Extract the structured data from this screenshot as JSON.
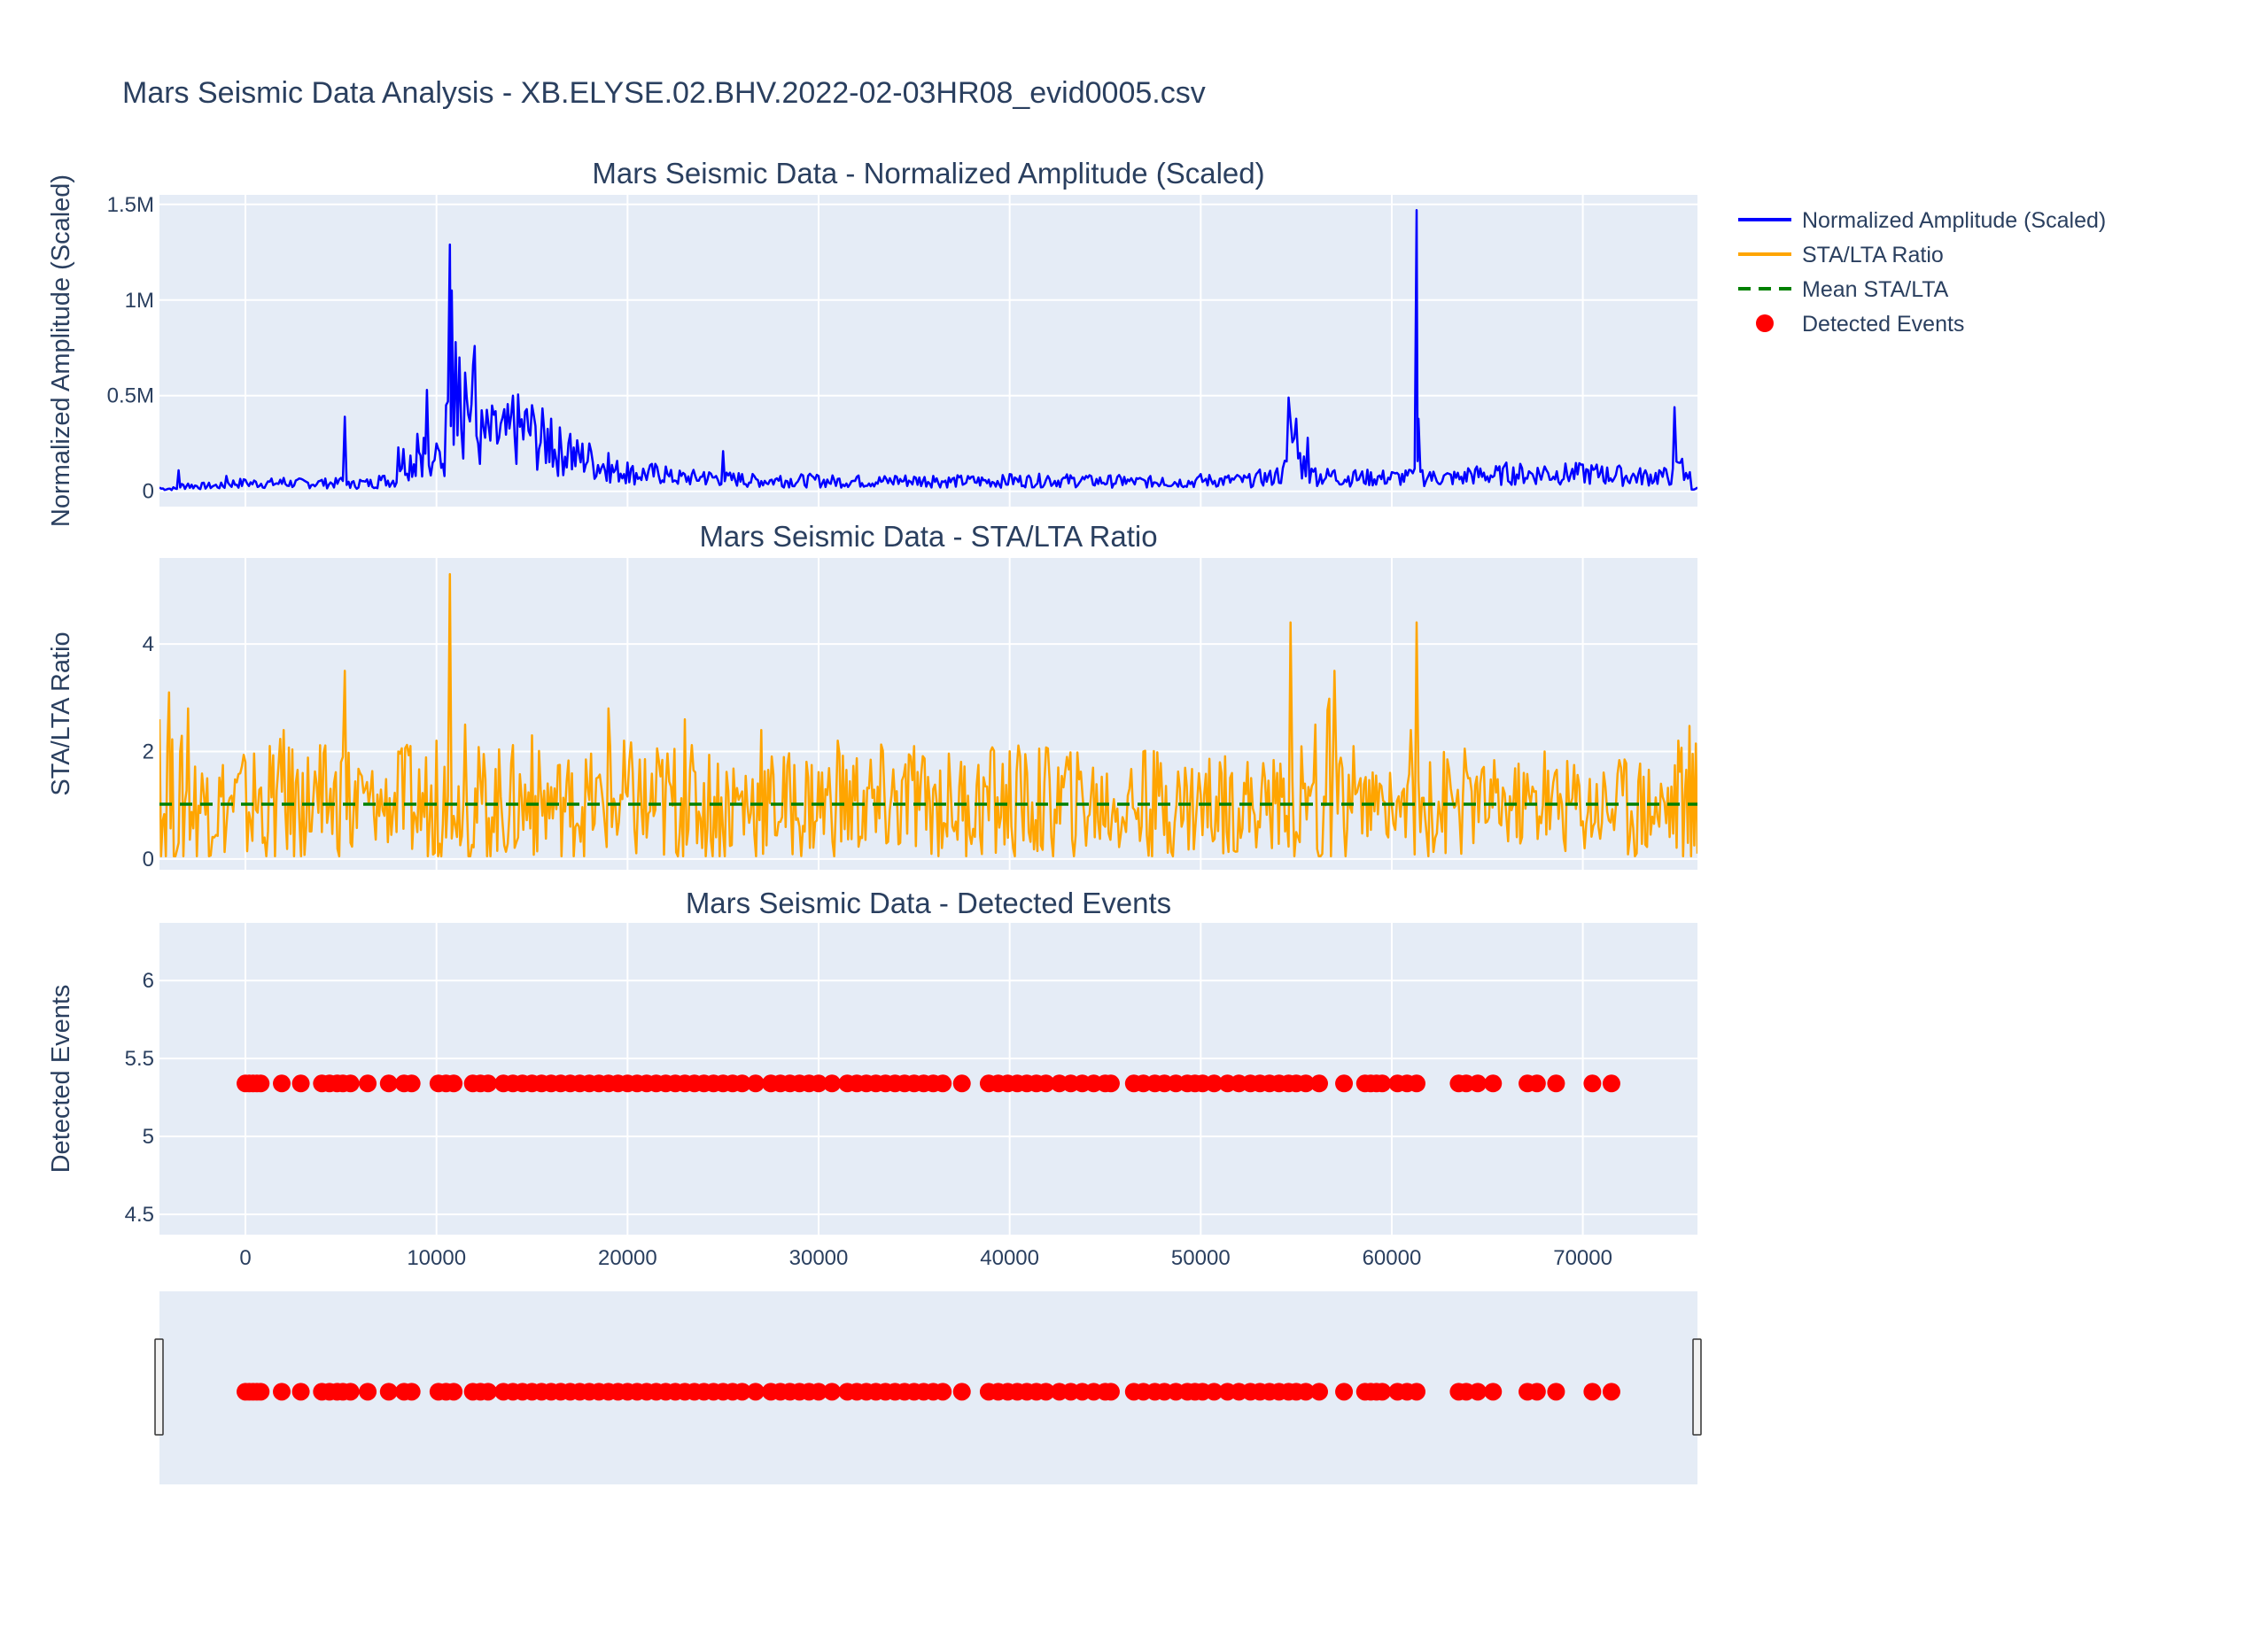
{
  "colors": {
    "amplitude": "#0000ff",
    "sta_lta": "#ffa500",
    "mean_line": "#008000",
    "events": "#ff0000",
    "plot_bg": "#e5ecf6",
    "text": "#2a3f5f"
  },
  "chart_data": {
    "type": "line",
    "title": "Mars Seismic Data Analysis - XB.ELYSE.02.BHV.2022-02-03HR08_evid0005.csv",
    "shared_x": {
      "range": [
        -4500,
        76000
      ],
      "ticks": [
        0,
        10000,
        20000,
        30000,
        40000,
        50000,
        60000,
        70000
      ],
      "tick_labels": [
        "0",
        "10000",
        "20000",
        "30000",
        "40000",
        "50000",
        "60000",
        "70000"
      ]
    },
    "legend": {
      "placement": "top-right",
      "entries": [
        "Normalized Amplitude (Scaled)",
        "STA/LTA Ratio",
        "Mean STA/LTA",
        "Detected Events"
      ]
    },
    "subplots": [
      {
        "title": "Mars Seismic Data - Normalized Amplitude (Scaled)",
        "ylabel": "Normalized Amplitude (Scaled)",
        "ylim": [
          -80000,
          1550000
        ],
        "yticks": [
          0,
          500000,
          1000000,
          1500000
        ],
        "ytick_labels": [
          "0",
          "0.5M",
          "1M",
          "1.5M"
        ],
        "series": [
          {
            "name": "Normalized Amplitude (Scaled)",
            "x": [
              -4500,
              -3500,
              -3000,
              -1000,
              0,
              2000,
              4000,
              5000,
              5200,
              5400,
              6000,
              7000,
              8000,
              9000,
              9500,
              9800,
              10000,
              10500,
              10700,
              10800,
              11000,
              11200,
              11500,
              12000,
              13000,
              14000,
              15000,
              16000,
              17000,
              18000,
              19000,
              20000,
              22000,
              24000,
              25000,
              26000,
              28000,
              30000,
              32000,
              34000,
              36000,
              38000,
              40000,
              42000,
              44000,
              46000,
              48000,
              50000,
              52000,
              53000,
              54000,
              54400,
              54600,
              55000,
              55200,
              55600,
              56000,
              57000,
              58000,
              60000,
              61000,
              61300,
              61400,
              61600,
              62000,
              64000,
              66000,
              68000,
              70000,
              71000,
              72000,
              74000,
              74800,
              75000,
              75200,
              75600,
              76000
            ],
            "y": [
              20000,
              110000,
              40000,
              80000,
              60000,
              70000,
              60000,
              70000,
              390000,
              50000,
              60000,
              80000,
              230000,
              300000,
              530000,
              150000,
              250000,
              450000,
              1290000,
              1050000,
              780000,
              700000,
              620000,
              760000,
              400000,
              500000,
              450000,
              380000,
              300000,
              250000,
              200000,
              150000,
              130000,
              100000,
              210000,
              90000,
              80000,
              80000,
              75000,
              80000,
              80000,
              75000,
              90000,
              80000,
              80000,
              75000,
              70000,
              90000,
              80000,
              100000,
              120000,
              160000,
              490000,
              380000,
              200000,
              280000,
              120000,
              110000,
              100000,
              100000,
              110000,
              1470000,
              380000,
              110000,
              100000,
              120000,
              150000,
              130000,
              140000,
              130000,
              120000,
              110000,
              440000,
              150000,
              170000,
              100000,
              20000
            ]
          }
        ]
      },
      {
        "title": "Mars Seismic Data - STA/LTA Ratio",
        "ylabel": "STA/LTA Ratio",
        "ylim": [
          -0.2,
          5.6
        ],
        "yticks": [
          0,
          2,
          4
        ],
        "ytick_labels": [
          "0",
          "2",
          "4"
        ],
        "series": [
          {
            "name": "STA/LTA Ratio",
            "x": [
              -4500,
              -4000,
              -3500,
              -3000,
              -2000,
              -1000,
              0,
              1000,
              2000,
              3000,
              4000,
              5000,
              5200,
              5500,
              6000,
              7000,
              8000,
              9000,
              10000,
              10500,
              10700,
              10900,
              11500,
              13000,
              15000,
              17000,
              19000,
              21000,
              23000,
              25000,
              27000,
              29000,
              31000,
              33000,
              35000,
              37000,
              39000,
              41000,
              43000,
              45000,
              47000,
              49000,
              51000,
              53000,
              54000,
              54500,
              54700,
              55000,
              56000,
              57000,
              57500,
              58000,
              60000,
              61000,
              61300,
              61500,
              62000,
              64000,
              66000,
              68000,
              70000,
              72000,
              74000,
              75000,
              75500,
              76000
            ],
            "y": [
              2.6,
              3.1,
              0.3,
              2.8,
              1.5,
              0.6,
              1.8,
              0.4,
              2.4,
              1.6,
              0.5,
              1.8,
              3.5,
              0.3,
              1.6,
              0.8,
              2.0,
              0.5,
              2.2,
              0.4,
              5.3,
              0.8,
              2.5,
              0.5,
              2.3,
              0.6,
              2.8,
              0.4,
              2.6,
              0.5,
              2.4,
              0.6,
              2.2,
              0.5,
              2.1,
              0.6,
              2.0,
              0.5,
              1.9,
              0.6,
              2.0,
              0.6,
              1.8,
              0.7,
              1.6,
              0.8,
              4.4,
              0.5,
              2.5,
              3.5,
              0.6,
              2.1,
              1.0,
              2.4,
              4.4,
              0.5,
              1.8,
              1.5,
              0.8,
              2.0,
              0.7,
              1.7,
              0.6,
              2.2,
              0.3,
              0.1
            ]
          },
          {
            "name": "Mean STA/LTA",
            "x": [
              -4500,
              76000
            ],
            "y": [
              1.02,
              1.02
            ]
          }
        ]
      },
      {
        "title": "Mars Seismic Data - Detected Events",
        "ylabel": "Detected Events",
        "ylim": [
          4.37,
          6.37
        ],
        "yticks": [
          4.5,
          5,
          5.5,
          6
        ],
        "ytick_labels": [
          "4.5",
          "5",
          "5.5",
          "6"
        ],
        "series": [
          {
            "name": "Detected Events",
            "y_value": 5.34,
            "x": [
              0,
              200,
              400,
              600,
              800,
              1900,
              2900,
              4000,
              4400,
              4800,
              5100,
              5500,
              6400,
              7500,
              8300,
              8700,
              10100,
              10500,
              10900,
              11900,
              12300,
              12700,
              13500,
              14000,
              14500,
              15000,
              15500,
              16000,
              16500,
              17000,
              17500,
              18000,
              18500,
              19000,
              19500,
              20000,
              20500,
              21000,
              21500,
              22000,
              22500,
              23000,
              23500,
              24000,
              24500,
              25000,
              25500,
              26000,
              26700,
              27500,
              28000,
              28500,
              29000,
              29500,
              30000,
              30700,
              31500,
              32000,
              32500,
              33000,
              33500,
              34000,
              34500,
              35000,
              35500,
              36000,
              36500,
              37500,
              38900,
              39400,
              39900,
              40400,
              40900,
              41400,
              41900,
              42600,
              43200,
              43800,
              44400,
              45000,
              45300,
              46500,
              47000,
              47600,
              48100,
              48700,
              49300,
              49700,
              50100,
              50700,
              51400,
              52000,
              52600,
              53100,
              53600,
              54100,
              54600,
              55000,
              55500,
              56200,
              57500,
              58600,
              58900,
              59200,
              59500,
              60300,
              60800,
              61300,
              63500,
              63900,
              64500,
              65300,
              67100,
              67600,
              68600,
              70500,
              71500
            ]
          }
        ]
      }
    ],
    "rangeslider": {
      "x_range": [
        -4500,
        76000
      ]
    }
  }
}
